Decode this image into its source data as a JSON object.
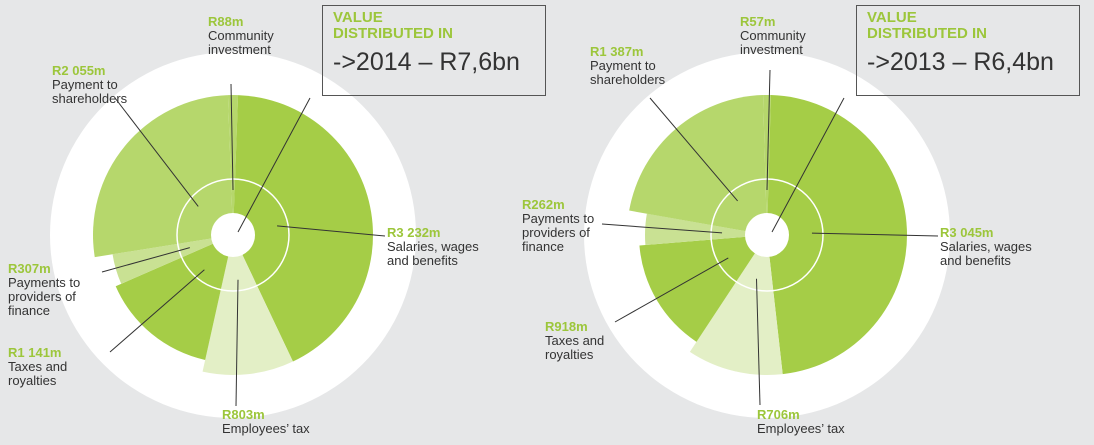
{
  "chart_data": [
    {
      "type": "pie",
      "title": "VALUE DISTRIBUTED IN",
      "subtitle": "->2014 – R7,6bn",
      "categories": [
        "Community investment",
        "Salaries, wages and benefits",
        "Employees’ tax",
        "Taxes and royalties",
        "Payments to providers of finance",
        "Payment to shareholders"
      ],
      "values": [
        88,
        3232,
        803,
        1141,
        307,
        2055
      ],
      "value_labels": [
        "R88m",
        "R3 232m",
        "R803m",
        "R1 141m",
        "R307m",
        "R2 055m"
      ],
      "colors": [
        "#b6d76c",
        "#a5cd47",
        "#e3efc6",
        "#a5cd47",
        "#c9e193",
        "#b6d76c"
      ]
    },
    {
      "type": "pie",
      "title": "VALUE DISTRIBUTED IN",
      "subtitle": "->2013 – R6,4bn",
      "categories": [
        "Community investment",
        "Salaries, wages and benefits",
        "Employees’ tax",
        "Taxes and royalties",
        "Payments to providers of finance",
        "Payment to shareholders"
      ],
      "values": [
        57,
        3045,
        706,
        918,
        262,
        1387
      ],
      "value_labels": [
        "R57m",
        "R3 045m",
        "R706m",
        "R918m",
        "R262m",
        "R1 387m"
      ],
      "colors": [
        "#b6d76c",
        "#a5cd47",
        "#e3efc6",
        "#a5cd47",
        "#c9e193",
        "#b6d76c"
      ]
    }
  ]
}
